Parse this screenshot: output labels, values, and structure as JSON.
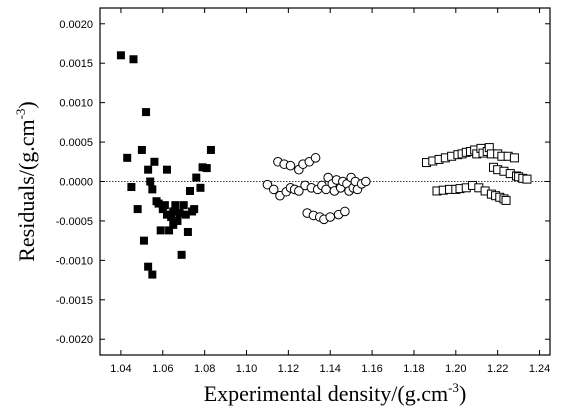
{
  "chart_data": {
    "type": "scatter",
    "title": "",
    "xlabel": "Experimental density/(g.cm",
    "xlabel_sup": "-3",
    "xlabel_close": ")",
    "ylabel": "Residuals/(g.cm",
    "ylabel_sup": "-3",
    "ylabel_close": ")",
    "xlim": [
      1.03,
      1.245
    ],
    "ylim": [
      -0.0022,
      0.0022
    ],
    "xticks": [
      "1.04",
      "1.06",
      "1.08",
      "1.10",
      "1.12",
      "1.14",
      "1.16",
      "1.18",
      "1.20",
      "1.22",
      "1.24"
    ],
    "yticks": [
      "-0.0020",
      "-0.0015",
      "-0.0010",
      "-0.0005",
      "0.0000",
      "0.0005",
      "0.0010",
      "0.0015",
      "0.0020"
    ],
    "zero_line": true,
    "grid": false,
    "series": [
      {
        "marker": "filled-square",
        "color": "#000000",
        "points": [
          [
            1.04,
            0.0016
          ],
          [
            1.046,
            0.00155
          ],
          [
            1.052,
            0.00088
          ],
          [
            1.043,
            0.0003
          ],
          [
            1.045,
            -7e-05
          ],
          [
            1.048,
            -0.00035
          ],
          [
            1.05,
            0.0004
          ],
          [
            1.051,
            -0.00075
          ],
          [
            1.053,
            -0.00108
          ],
          [
            1.055,
            -0.00118
          ],
          [
            1.053,
            0.00015
          ],
          [
            1.054,
            0.0
          ],
          [
            1.055,
            -0.0001
          ],
          [
            1.056,
            0.00025
          ],
          [
            1.057,
            -0.00025
          ],
          [
            1.058,
            -0.00028
          ],
          [
            1.059,
            -0.00062
          ],
          [
            1.06,
            -0.00035
          ],
          [
            1.061,
            -0.0003
          ],
          [
            1.062,
            -0.00042
          ],
          [
            1.062,
            0.00015
          ],
          [
            1.063,
            -0.00062
          ],
          [
            1.064,
            -0.00045
          ],
          [
            1.065,
            -0.00038
          ],
          [
            1.065,
            -0.00055
          ],
          [
            1.066,
            -0.0003
          ],
          [
            1.067,
            -0.0005
          ],
          [
            1.068,
            -0.0004
          ],
          [
            1.069,
            -0.00093
          ],
          [
            1.07,
            -0.0003
          ],
          [
            1.071,
            -0.00042
          ],
          [
            1.072,
            -0.00064
          ],
          [
            1.073,
            -0.00012
          ],
          [
            1.074,
            -0.00038
          ],
          [
            1.075,
            -0.00035
          ],
          [
            1.076,
            5e-05
          ],
          [
            1.078,
            -8e-05
          ],
          [
            1.079,
            0.00018
          ],
          [
            1.081,
            0.00017
          ],
          [
            1.083,
            0.0004
          ]
        ]
      },
      {
        "marker": "open-circle",
        "color": "#000000",
        "points": [
          [
            1.11,
            -4e-05
          ],
          [
            1.113,
            -0.0001
          ],
          [
            1.115,
            0.00025
          ],
          [
            1.116,
            -0.00018
          ],
          [
            1.118,
            0.00022
          ],
          [
            1.119,
            -0.00013
          ],
          [
            1.121,
            -8e-05
          ],
          [
            1.121,
            0.0002
          ],
          [
            1.123,
            -0.0001
          ],
          [
            1.125,
            0.00015
          ],
          [
            1.125,
            -0.00012
          ],
          [
            1.127,
            0.00022
          ],
          [
            1.128,
            -5e-05
          ],
          [
            1.129,
            -0.0004
          ],
          [
            1.13,
            0.00025
          ],
          [
            1.131,
            -8e-05
          ],
          [
            1.132,
            -0.00043
          ],
          [
            1.133,
            0.0003
          ],
          [
            1.134,
            -0.0001
          ],
          [
            1.135,
            -0.00045
          ],
          [
            1.136,
            -5e-05
          ],
          [
            1.137,
            -0.00048
          ],
          [
            1.138,
            -0.0001
          ],
          [
            1.139,
            5e-05
          ],
          [
            1.14,
            -0.00045
          ],
          [
            1.141,
            -3e-05
          ],
          [
            1.142,
            -0.00012
          ],
          [
            1.143,
            2e-05
          ],
          [
            1.144,
            -0.00042
          ],
          [
            1.145,
            -8e-05
          ],
          [
            1.146,
            0.0
          ],
          [
            1.147,
            -0.00038
          ],
          [
            1.148,
            -3e-05
          ],
          [
            1.149,
            -0.00012
          ],
          [
            1.15,
            5e-05
          ],
          [
            1.151,
            -8e-05
          ],
          [
            1.152,
            0.0
          ],
          [
            1.153,
            -0.0001
          ],
          [
            1.155,
            -3e-05
          ],
          [
            1.157,
            0.0
          ]
        ]
      },
      {
        "marker": "open-square",
        "color": "#000000",
        "points": [
          [
            1.186,
            0.00024
          ],
          [
            1.189,
            0.00026
          ],
          [
            1.191,
            -0.00012
          ],
          [
            1.192,
            0.00028
          ],
          [
            1.194,
            -0.00011
          ],
          [
            1.195,
            0.0003
          ],
          [
            1.197,
            -0.0001
          ],
          [
            1.198,
            0.00032
          ],
          [
            1.2,
            -0.0001
          ],
          [
            1.201,
            0.00034
          ],
          [
            1.202,
            -9e-05
          ],
          [
            1.203,
            0.00035
          ],
          [
            1.205,
            -8e-05
          ],
          [
            1.205,
            0.00037
          ],
          [
            1.207,
            0.00038
          ],
          [
            1.208,
            -5e-05
          ],
          [
            1.209,
            0.0004
          ],
          [
            1.21,
            0.00035
          ],
          [
            1.211,
            -8e-05
          ],
          [
            1.212,
            0.00042
          ],
          [
            1.213,
            0.00036
          ],
          [
            1.214,
            -0.00012
          ],
          [
            1.215,
            0.00038
          ],
          [
            1.216,
            0.00043
          ],
          [
            1.217,
            -0.00016
          ],
          [
            1.217,
            0.00035
          ],
          [
            1.218,
            0.00018
          ],
          [
            1.219,
            -0.00018
          ],
          [
            1.22,
            0.00035
          ],
          [
            1.22,
            0.00015
          ],
          [
            1.221,
            -0.0002
          ],
          [
            1.222,
            0.00032
          ],
          [
            1.223,
            -0.00022
          ],
          [
            1.223,
            0.00013
          ],
          [
            1.224,
            -0.00024
          ],
          [
            1.225,
            0.00032
          ],
          [
            1.226,
            0.0001
          ],
          [
            1.228,
            0.0003
          ],
          [
            1.229,
            7e-05
          ],
          [
            1.23,
            6e-05
          ],
          [
            1.232,
            4e-05
          ],
          [
            1.234,
            3e-05
          ]
        ]
      }
    ]
  }
}
